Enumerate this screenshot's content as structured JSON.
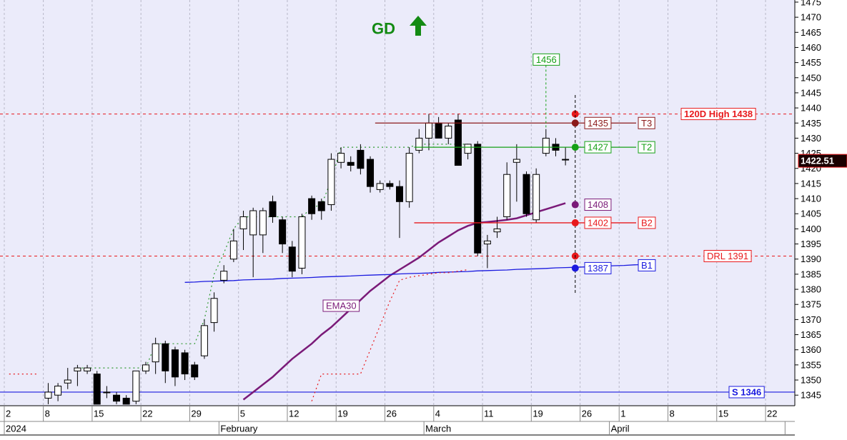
{
  "chart_data": {
    "type": "candlestick",
    "title": "GD",
    "categories": [
      "2",
      null,
      null,
      null,
      "8",
      null,
      null,
      null,
      null,
      "15",
      null,
      null,
      null,
      null,
      "22",
      null,
      null,
      null,
      null,
      "29",
      null,
      null,
      null,
      null,
      "5",
      null,
      null,
      null,
      null,
      "12",
      null,
      null,
      null,
      null,
      "19",
      null,
      null,
      null,
      null,
      "26",
      null,
      null,
      null,
      null,
      "4",
      null,
      null,
      null,
      null,
      "11",
      null,
      null,
      null,
      null,
      "19",
      null,
      null,
      null,
      null,
      "26",
      null,
      null,
      null,
      "1",
      null,
      null,
      null,
      null,
      "8",
      null,
      null,
      null,
      null,
      "15",
      null,
      null,
      null,
      null,
      "22",
      null,
      null
    ],
    "months": [
      "2024",
      null,
      null,
      null,
      null,
      null,
      null,
      null,
      null,
      null,
      null,
      null,
      null,
      null,
      null,
      null,
      null,
      null,
      null,
      null,
      null,
      null,
      "February",
      null,
      null,
      null,
      null,
      null,
      null,
      null,
      null,
      null,
      null,
      null,
      null,
      null,
      null,
      null,
      null,
      null,
      null,
      null,
      null,
      "March",
      null,
      null,
      null,
      null,
      null,
      null,
      null,
      null,
      null,
      null,
      null,
      null,
      null,
      null,
      null,
      null,
      null,
      null,
      "April",
      null,
      null,
      null,
      null,
      null,
      null,
      null,
      null,
      null,
      null,
      null,
      null,
      null,
      null,
      null,
      null,
      null
    ],
    "open": [
      null,
      null,
      null,
      null,
      1344,
      1345,
      1349,
      1353,
      1353,
      1352,
      1346,
      1345,
      1344,
      1343,
      1353,
      1356,
      1362,
      1360,
      1359,
      1355,
      1358,
      1369,
      1383,
      1390,
      1400,
      1398,
      1398,
      1409,
      1403,
      1394,
      1387,
      1410,
      1409,
      1408,
      1422,
      1422,
      1426,
      1423,
      1413,
      1415,
      1414,
      1409,
      1426,
      1430,
      1435,
      1430,
      1436,
      1425,
      1428,
      1395,
      1399,
      1404,
      1422,
      1418,
      1403,
      1425,
      1428,
      1423,
      null,
      null,
      null,
      null,
      null,
      null,
      null,
      null,
      null,
      null,
      null,
      null,
      null,
      null,
      null,
      null,
      null,
      null,
      null,
      null,
      null,
      null,
      null
    ],
    "high": [
      null,
      null,
      null,
      null,
      1349,
      1349,
      1354,
      1355,
      1355,
      1353,
      1348,
      1346,
      1345,
      1353,
      1356,
      1364,
      1363,
      1361,
      1360,
      1356,
      1370,
      1379,
      1388,
      1400,
      1406,
      1407,
      1407,
      1411,
      1404,
      1396,
      1405,
      1411,
      1410,
      1425,
      1427,
      1424,
      1428,
      1424,
      1416,
      1416,
      1416,
      1427,
      1433,
      1438,
      1437,
      1435,
      1438,
      1428,
      1429,
      1398,
      1404,
      1422,
      1428,
      1419,
      1420,
      1433,
      1430,
      1427,
      null,
      null,
      null,
      null,
      null,
      null,
      null,
      null,
      null,
      null,
      null,
      null,
      null,
      null,
      null,
      null,
      null,
      null,
      null,
      null,
      null,
      null,
      null
    ],
    "low": [
      null,
      null,
      null,
      null,
      1342,
      1343,
      1347,
      1348,
      1352,
      1342,
      1344,
      1342,
      1342,
      1342,
      1352,
      1352,
      1349,
      1348,
      1350,
      1350,
      1357,
      1366,
      1382,
      1389,
      1393,
      1384,
      1392,
      1402,
      1392,
      1384,
      1385,
      1403,
      1403,
      1406,
      1420,
      1419,
      1418,
      1412,
      1412,
      1413,
      1397,
      1407,
      1425,
      1426,
      1430,
      1428,
      1421,
      1423,
      1391,
      1387,
      1397,
      1403,
      1409,
      1404,
      1402,
      1424,
      1424,
      1421,
      null,
      null,
      null,
      null,
      null,
      null,
      null,
      null,
      null,
      null,
      null,
      null,
      null,
      null,
      null,
      null,
      null,
      null,
      null,
      null,
      null,
      null,
      null
    ],
    "close": [
      null,
      null,
      null,
      null,
      1346,
      1348,
      1350,
      1354,
      1354,
      1342,
      1346,
      1343,
      1342,
      1353,
      1355,
      1362,
      1353,
      1351,
      1352,
      1351,
      1368,
      1377,
      1386,
      1396,
      1404,
      1406,
      1406,
      1404,
      1395,
      1386,
      1404,
      1405,
      1406,
      1423,
      1425,
      1421,
      1420,
      1414,
      1415,
      1414,
      1409,
      1425,
      1430,
      1435,
      1430,
      1434,
      1421,
      1428,
      1392,
      1396,
      1400,
      1418,
      1423,
      1405,
      1418,
      1430,
      1426,
      1423,
      null,
      null,
      null,
      null,
      null,
      null,
      null,
      null,
      null,
      null,
      null,
      null,
      null,
      null,
      null,
      null,
      null,
      null,
      null,
      null,
      null,
      null,
      null
    ],
    "series": [
      {
        "name": "EMA30",
        "color": "#7a1a78",
        "last": 1408,
        "values": [
          null,
          null,
          null,
          null,
          null,
          null,
          null,
          null,
          null,
          null,
          null,
          null,
          null,
          null,
          null,
          null,
          null,
          null,
          null,
          null,
          null,
          null,
          null,
          null,
          1343.5,
          1346,
          1348.5,
          1351,
          1354,
          1357,
          1359.5,
          1362,
          1365,
          1367.5,
          1370.5,
          1373.5,
          1376.5,
          1379.5,
          1382,
          1384.5,
          1386.5,
          1388.5,
          1390.5,
          1393,
          1395.5,
          1397.5,
          1399.5,
          1401,
          1402,
          1402.3,
          1402.6,
          1403,
          1403.5,
          1404.5,
          1405.5,
          1406.5,
          1407.5,
          1408.5,
          null,
          null,
          null,
          null,
          null,
          null,
          null,
          null,
          null,
          null,
          null,
          null,
          null,
          null,
          null,
          null,
          null,
          null,
          null,
          null,
          null,
          null,
          null
        ]
      },
      {
        "name": "B1",
        "color": "#1a1adf",
        "last": 1387,
        "values": [
          null,
          null,
          null,
          null,
          null,
          null,
          null,
          null,
          null,
          null,
          null,
          null,
          null,
          null,
          null,
          null,
          null,
          null,
          1382.3,
          1382.4,
          1382.6,
          1382.7,
          1382.8,
          1382.9,
          1383.1,
          1383.2,
          1383.3,
          1383.4,
          1383.6,
          1383.7,
          1383.8,
          1383.9,
          1384.1,
          1384.2,
          1384.3,
          1384.4,
          1384.6,
          1384.7,
          1384.8,
          1384.9,
          1385.1,
          1385.2,
          1385.3,
          1385.4,
          1385.6,
          1385.7,
          1385.8,
          1385.9,
          1386.1,
          1386.2,
          1386.3,
          1386.4,
          1386.6,
          1386.7,
          1386.8,
          1386.9,
          1387.1,
          1387.2,
          1387.3,
          1387.4,
          1387.6,
          1387.7,
          1387.8,
          1387.9,
          1388.1,
          1388.2,
          null,
          null,
          null,
          null,
          null,
          null,
          null,
          null,
          null,
          null,
          null,
          null,
          null,
          null,
          null
        ]
      },
      {
        "color": "#2e9a2e",
        "dotted": true,
        "values": [
          null,
          null,
          null,
          null,
          null,
          null,
          null,
          1354,
          1354,
          1354,
          1354,
          1354,
          1354,
          1354,
          1354,
          1362,
          1362,
          1362,
          1362,
          1362,
          1370,
          1385,
          1392,
          1400,
          1404,
          1404,
          1404,
          1404,
          1404,
          1404,
          1404,
          1407,
          1408,
          1416,
          1427,
          1427,
          1427,
          1427,
          1427,
          1427,
          1427,
          1427,
          1428,
          1428,
          1428,
          1428,
          1428,
          1428,
          null,
          null,
          null,
          null,
          null,
          null,
          null,
          null,
          null,
          null,
          null,
          null,
          null,
          null,
          null,
          null,
          null,
          null,
          null,
          null,
          null,
          null,
          null,
          null,
          null,
          null,
          null,
          null,
          null,
          null,
          null,
          null,
          null
        ]
      },
      {
        "color": "#e8191c",
        "dotted": true,
        "values": [
          1352,
          1352,
          1352,
          1352,
          null,
          null,
          null,
          null,
          null,
          null,
          null,
          null,
          null,
          null,
          null,
          null,
          null,
          null,
          null,
          null,
          null,
          null,
          null,
          null,
          null,
          null,
          null,
          null,
          null,
          null,
          null,
          1343,
          1352,
          1352,
          1352,
          1352,
          1352,
          1360,
          1368,
          1376,
          1383,
          1384,
          1384.5,
          1385,
          1385.5,
          1385.5,
          1386,
          1386.5,
          null,
          null,
          null,
          null,
          null,
          null,
          null,
          null,
          null,
          null,
          null,
          null,
          null,
          null,
          null,
          null,
          null,
          null,
          null,
          null,
          null,
          null,
          null,
          null,
          null,
          null,
          null,
          null,
          null,
          null,
          null,
          null,
          null
        ]
      }
    ],
    "levels": [
      {
        "label": "120D High 1438",
        "value": 1438,
        "color": "#e8191c",
        "dashed": true
      },
      {
        "label": "DRL 1391",
        "value": 1391,
        "color": "#e8191c",
        "dashed": true
      },
      {
        "label": "S 1346",
        "value": 1346,
        "color": "#1a1adf",
        "dashed": false
      }
    ],
    "targets": [
      {
        "name": "T3",
        "value": 1435,
        "color": "#8b1a1a"
      },
      {
        "name": "T2",
        "value": 1427,
        "color": "#16a016"
      },
      {
        "name": "B2",
        "value": 1402,
        "color": "#e8191c"
      }
    ],
    "target_high": 1456,
    "last_price": 1422.51,
    "ylim": [
      1341.5,
      1475.7
    ],
    "yticks": [
      1345,
      1350,
      1355,
      1360,
      1365,
      1370,
      1375,
      1380,
      1385,
      1390,
      1395,
      1400,
      1405,
      1410,
      1415,
      1420,
      1425,
      1430,
      1435,
      1440,
      1445,
      1450,
      1455,
      1460,
      1465,
      1470,
      1475
    ],
    "grid": true
  }
}
